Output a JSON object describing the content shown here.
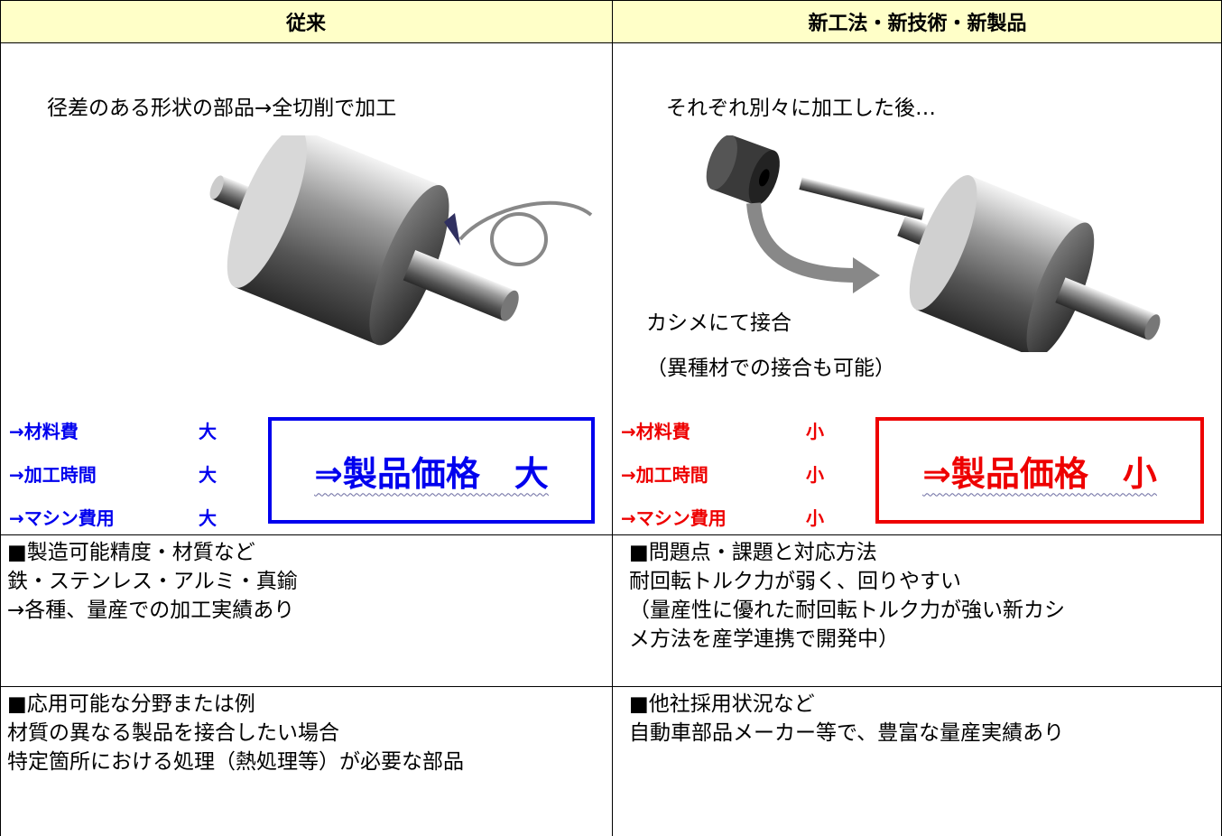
{
  "header": {
    "left": "従来",
    "right": "新工法・新技術・新製品"
  },
  "conventional": {
    "caption": "径差のある形状の部品→全切削で加工",
    "costs": [
      {
        "label": "→材料費",
        "level": "大"
      },
      {
        "label": "→加工時間",
        "level": "大"
      },
      {
        "label": "→マシン費用",
        "level": "大"
      }
    ],
    "result": "⇒製品価格　大"
  },
  "new_method": {
    "caption": "それぞれ別々に加工した後…",
    "notes": [
      "カシメにて接合",
      "（異種材での接合も可能）"
    ],
    "costs": [
      {
        "label": "→材料費",
        "level": "小"
      },
      {
        "label": "→加工時間",
        "level": "小"
      },
      {
        "label": "→マシン費用",
        "level": "小"
      }
    ],
    "result": "⇒製品価格　小"
  },
  "rows": [
    {
      "left": [
        "■製造可能精度・材質など",
        "鉄・ステンレス・アルミ・真鍮",
        "→各種、量産での加工実績あり"
      ],
      "right": [
        "■問題点・課題と対応方法",
        "耐回転トルク力が弱く、回りやすい",
        "（量産性に優れた耐回転トルク力が強い新カシ",
        "メ方法を産学連携で開発中）"
      ]
    },
    {
      "left": [
        "■応用可能な分野または例",
        "材質の異なる製品を接合したい場合",
        "特定箇所における処理（熱処理等）が必要な部品"
      ],
      "right": [
        "■他社採用状況など",
        "自動車部品メーカー等で、豊富な量産実績あり"
      ]
    }
  ]
}
